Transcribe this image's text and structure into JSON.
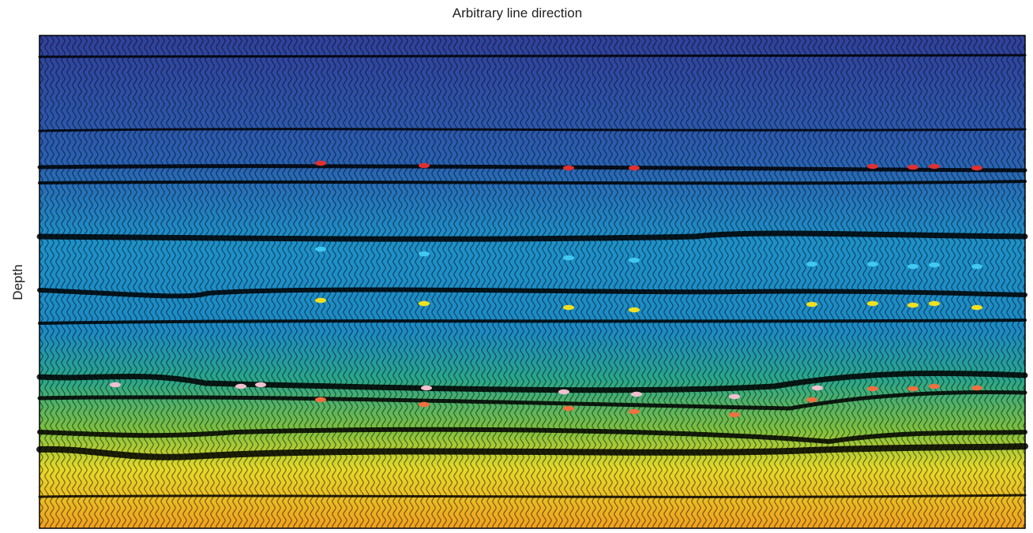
{
  "title": "Arbitrary line direction",
  "y_axis_label": "Depth"
}
